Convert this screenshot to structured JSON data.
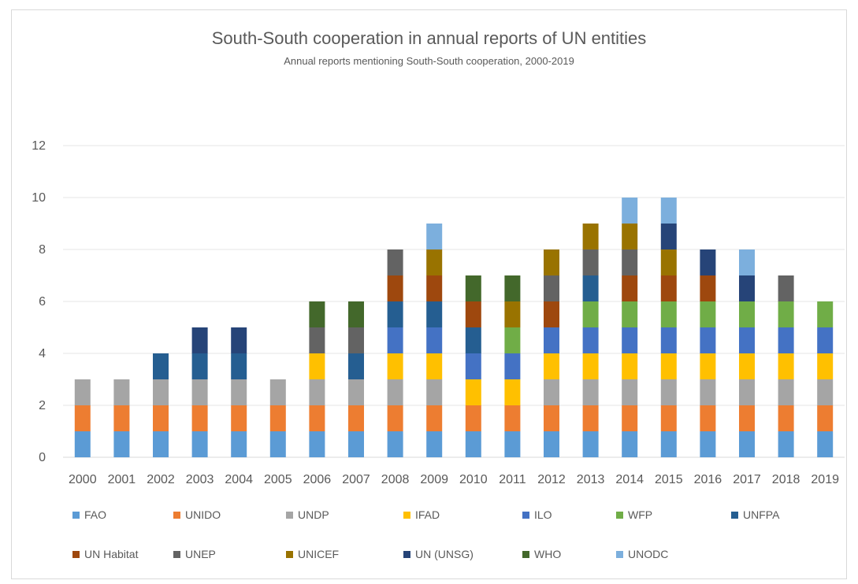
{
  "chart_data": {
    "type": "bar",
    "stacked": true,
    "title": "South-South cooperation in annual reports of UN entities",
    "subtitle": "Annual reports mentioning South-South cooperation, 2000-2019",
    "xlabel": "",
    "ylabel": "",
    "ylim": [
      0,
      12
    ],
    "yticks": [
      0,
      2,
      4,
      6,
      8,
      10,
      12
    ],
    "grid": true,
    "legend_position": "bottom",
    "categories": [
      "2000",
      "2001",
      "2002",
      "2003",
      "2004",
      "2005",
      "2006",
      "2007",
      "2008",
      "2009",
      "2010",
      "2011",
      "2012",
      "2013",
      "2014",
      "2015",
      "2016",
      "2017",
      "2018",
      "2019"
    ],
    "series": [
      {
        "name": "FAO",
        "color": "#5b9bd5",
        "values": [
          1,
          1,
          1,
          1,
          1,
          1,
          1,
          1,
          1,
          1,
          1,
          1,
          1,
          1,
          1,
          1,
          1,
          1,
          1,
          1
        ]
      },
      {
        "name": "UNIDO",
        "color": "#ed7d31",
        "values": [
          1,
          1,
          1,
          1,
          1,
          1,
          1,
          1,
          1,
          1,
          1,
          1,
          1,
          1,
          1,
          1,
          1,
          1,
          1,
          1
        ]
      },
      {
        "name": "UNDP",
        "color": "#a5a5a5",
        "values": [
          1,
          1,
          1,
          1,
          1,
          1,
          1,
          1,
          1,
          1,
          0,
          0,
          1,
          1,
          1,
          1,
          1,
          1,
          1,
          1
        ]
      },
      {
        "name": "IFAD",
        "color": "#ffc000",
        "values": [
          0,
          0,
          0,
          0,
          0,
          0,
          1,
          0,
          1,
          1,
          1,
          1,
          1,
          1,
          1,
          1,
          1,
          1,
          1,
          1
        ]
      },
      {
        "name": "ILO",
        "color": "#4472c4",
        "values": [
          0,
          0,
          0,
          0,
          0,
          0,
          0,
          0,
          1,
          1,
          1,
          1,
          1,
          1,
          1,
          1,
          1,
          1,
          1,
          1
        ]
      },
      {
        "name": "WFP",
        "color": "#70ad47",
        "values": [
          0,
          0,
          0,
          0,
          0,
          0,
          0,
          0,
          0,
          0,
          0,
          1,
          0,
          1,
          1,
          1,
          1,
          1,
          1,
          1
        ]
      },
      {
        "name": "UNFPA",
        "color": "#255e91",
        "values": [
          0,
          0,
          1,
          1,
          1,
          0,
          0,
          1,
          1,
          1,
          1,
          0,
          0,
          1,
          0,
          0,
          0,
          0,
          0,
          0
        ]
      },
      {
        "name": "UN Habitat",
        "color": "#9e480e",
        "values": [
          0,
          0,
          0,
          0,
          0,
          0,
          0,
          0,
          1,
          1,
          1,
          0,
          1,
          0,
          1,
          1,
          1,
          0,
          0,
          0
        ]
      },
      {
        "name": "UNEP",
        "color": "#636363",
        "values": [
          0,
          0,
          0,
          0,
          0,
          0,
          1,
          1,
          1,
          0,
          0,
          0,
          1,
          1,
          1,
          0,
          0,
          0,
          1,
          0
        ]
      },
      {
        "name": "UNICEF",
        "color": "#997300",
        "values": [
          0,
          0,
          0,
          0,
          0,
          0,
          0,
          0,
          0,
          1,
          0,
          1,
          1,
          1,
          1,
          1,
          0,
          0,
          0,
          0
        ]
      },
      {
        "name": "UN (UNSG)",
        "color": "#264478",
        "values": [
          0,
          0,
          0,
          1,
          1,
          0,
          0,
          0,
          0,
          0,
          0,
          0,
          0,
          0,
          0,
          1,
          1,
          1,
          0,
          0
        ]
      },
      {
        "name": "WHO",
        "color": "#43682b",
        "values": [
          0,
          0,
          0,
          0,
          0,
          0,
          1,
          1,
          0,
          0,
          1,
          1,
          0,
          0,
          0,
          0,
          0,
          0,
          0,
          0
        ]
      },
      {
        "name": "UNODC",
        "color": "#7cafdd",
        "values": [
          0,
          0,
          0,
          0,
          0,
          0,
          0,
          0,
          0,
          1,
          0,
          0,
          0,
          0,
          1,
          1,
          0,
          1,
          0,
          0
        ]
      }
    ]
  }
}
